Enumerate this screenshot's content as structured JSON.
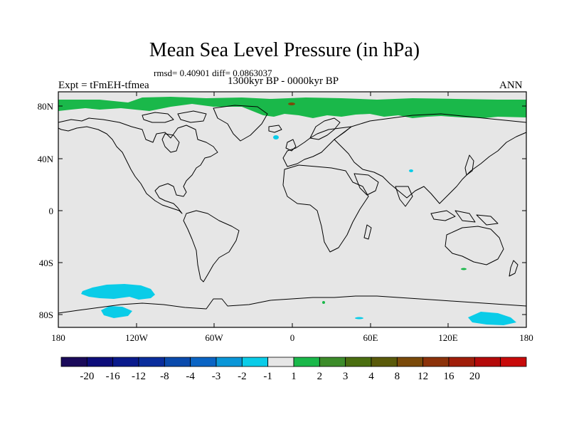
{
  "title": "Mean Sea Level Pressure (in hPa)",
  "stats": "rmsd= 0.40901 diff= 0.0863037",
  "period": "1300kyr BP - 0000kyr BP",
  "experiment": "Expt = tFmEH-tfmea",
  "season": "ANN",
  "lat_labels": [
    "80N",
    "40N",
    "0",
    "40S",
    "80S"
  ],
  "lon_labels": [
    "180",
    "120W",
    "60W",
    "0",
    "60E",
    "120E",
    "180"
  ],
  "colorbar": {
    "colors": [
      "#1a0a5a",
      "#0d0d7a",
      "#0a1a8c",
      "#0a2d9c",
      "#0a4aac",
      "#0a64c4",
      "#0a96d8",
      "#0acce8",
      "#e6e6e6",
      "#1ab84a",
      "#3c8c2a",
      "#4a6e10",
      "#5a5a0a",
      "#7a4a0a",
      "#8c320a",
      "#a01e0a",
      "#b40a0a",
      "#c80a0a"
    ],
    "labels": [
      "-20",
      "-16",
      "-12",
      "-8",
      "-4",
      "-3",
      "-2",
      "-1",
      "1",
      "2",
      "3",
      "4",
      "8",
      "12",
      "16",
      "20"
    ]
  },
  "colors": {
    "background": "#e6e6e6",
    "positive_anomaly": "#1ab84a",
    "negative_anomaly": "#0acce8",
    "coastline": "#000000"
  }
}
